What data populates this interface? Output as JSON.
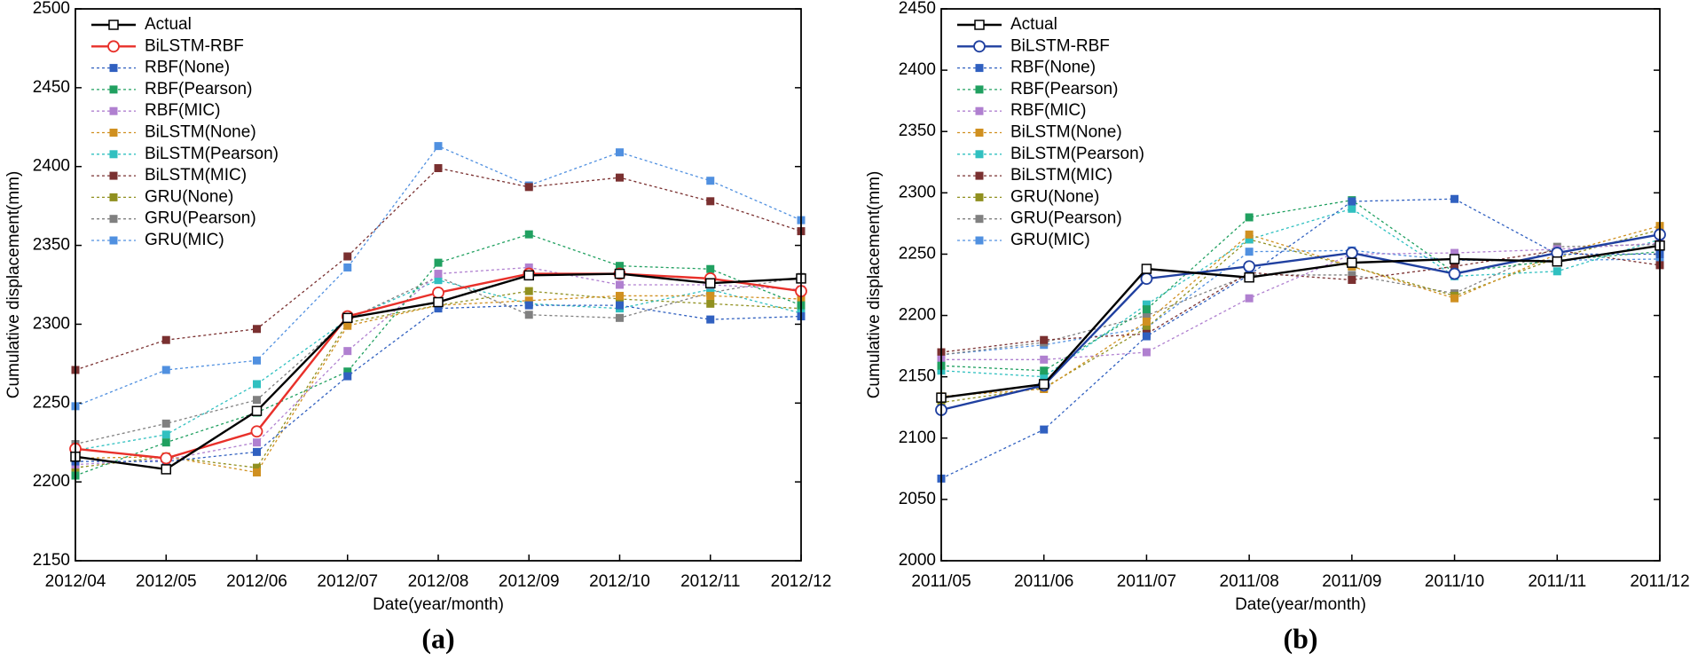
{
  "chart_data": [
    {
      "type": "line",
      "label": "(a)",
      "x_label": "Date(year/month)",
      "y_label": "Cumulative displacement(mm)",
      "categories": [
        "2012/04",
        "2012/05",
        "2012/06",
        "2012/07",
        "2012/08",
        "2012/09",
        "2012/10",
        "2012/11",
        "2012/12"
      ],
      "ylim": [
        2150,
        2500
      ],
      "yticks": [
        2150,
        2200,
        2250,
        2300,
        2350,
        2400,
        2450,
        2500
      ],
      "legend": "upper-left",
      "series": [
        {
          "name": "Actual",
          "color": "#000000",
          "style": "solid",
          "marker": "open-square",
          "values": [
            2216,
            2208,
            2245,
            2304,
            2314,
            2331,
            2332,
            2326,
            2329
          ]
        },
        {
          "name": "BiLSTM-RBF",
          "color": "#e8302a",
          "style": "solid",
          "marker": "open-circle",
          "values": [
            2221,
            2215,
            2232,
            2305,
            2320,
            2332,
            2332,
            2329,
            2321
          ]
        },
        {
          "name": "RBF(None)",
          "color": "#3060c0",
          "style": "dashed",
          "marker": "square",
          "values": [
            2213,
            2213,
            2219,
            2267,
            2310,
            2312,
            2312,
            2303,
            2305
          ]
        },
        {
          "name": "RBF(Pearson)",
          "color": "#20a060",
          "style": "dashed",
          "marker": "square",
          "values": [
            2204,
            2225,
            2244,
            2270,
            2339,
            2357,
            2337,
            2335,
            2312
          ]
        },
        {
          "name": "RBF(MIC)",
          "color": "#b080d0",
          "style": "dashed",
          "marker": "square",
          "values": [
            2211,
            2214,
            2225,
            2283,
            2332,
            2336,
            2325,
            2325,
            2322
          ]
        },
        {
          "name": "BiLSTM(None)",
          "color": "#d09020",
          "style": "dashed",
          "marker": "square",
          "values": [
            2215,
            2216,
            2206,
            2299,
            2312,
            2315,
            2318,
            2318,
            2316
          ]
        },
        {
          "name": "BiLSTM(Pearson)",
          "color": "#30c0c0",
          "style": "dashed",
          "marker": "square",
          "values": [
            2220,
            2230,
            2262,
            2303,
            2328,
            2313,
            2310,
            2322,
            2307
          ]
        },
        {
          "name": "BiLSTM(MIC)",
          "color": "#7a3030",
          "style": "dashed",
          "marker": "square",
          "values": [
            2271,
            2290,
            2297,
            2343,
            2399,
            2387,
            2393,
            2378,
            2359
          ]
        },
        {
          "name": "GRU(None)",
          "color": "#909020",
          "style": "dashed",
          "marker": "square",
          "values": [
            2209,
            2216,
            2209,
            2301,
            2312,
            2321,
            2316,
            2313,
            2310
          ]
        },
        {
          "name": "GRU(Pearson)",
          "color": "#808080",
          "style": "dashed",
          "marker": "square",
          "values": [
            2224,
            2237,
            2252,
            2303,
            2330,
            2306,
            2304,
            2320,
            2330
          ]
        },
        {
          "name": "GRU(MIC)",
          "color": "#5090e0",
          "style": "dashed",
          "marker": "square",
          "values": [
            2248,
            2271,
            2277,
            2336,
            2413,
            2388,
            2409,
            2391,
            2366
          ]
        }
      ]
    },
    {
      "type": "line",
      "label": "(b)",
      "x_label": "Date(year/month)",
      "y_label": "Cumulative displacement(mm)",
      "categories": [
        "2011/05",
        "2011/06",
        "2011/07",
        "2011/08",
        "2011/09",
        "2011/10",
        "2011/11",
        "2011/12"
      ],
      "ylim": [
        2000,
        2450
      ],
      "yticks": [
        2000,
        2050,
        2100,
        2150,
        2200,
        2250,
        2300,
        2350,
        2400,
        2450
      ],
      "legend": "upper-left",
      "series": [
        {
          "name": "Actual",
          "color": "#000000",
          "style": "solid",
          "marker": "open-square",
          "values": [
            2133,
            2144,
            2238,
            2231,
            2243,
            2246,
            2244,
            2257
          ]
        },
        {
          "name": "BiLSTM-RBF",
          "color": "#2040a0",
          "style": "solid",
          "marker": "open-circle",
          "values": [
            2123,
            2143,
            2230,
            2240,
            2251,
            2234,
            2251,
            2266
          ]
        },
        {
          "name": "RBF(None)",
          "color": "#3060c0",
          "style": "dashed",
          "marker": "square",
          "values": [
            2067,
            2107,
            2183,
            2233,
            2293,
            2295,
            2250,
            2250
          ]
        },
        {
          "name": "RBF(Pearson)",
          "color": "#20a060",
          "style": "dashed",
          "marker": "square",
          "values": [
            2159,
            2155,
            2205,
            2280,
            2294,
            2235,
            2245,
            2252
          ]
        },
        {
          "name": "RBF(MIC)",
          "color": "#b080d0",
          "style": "dashed",
          "marker": "square",
          "values": [
            2164,
            2164,
            2170,
            2214,
            2250,
            2251,
            2254,
            2259
          ]
        },
        {
          "name": "BiLSTM(None)",
          "color": "#d09020",
          "style": "dashed",
          "marker": "square",
          "values": [
            2134,
            2140,
            2195,
            2266,
            2240,
            2214,
            2250,
            2273
          ]
        },
        {
          "name": "BiLSTM(Pearson)",
          "color": "#30c0c0",
          "style": "dashed",
          "marker": "square",
          "values": [
            2155,
            2150,
            2209,
            2262,
            2287,
            2232,
            2236,
            2262
          ]
        },
        {
          "name": "BiLSTM(MIC)",
          "color": "#7a3030",
          "style": "dashed",
          "marker": "square",
          "values": [
            2170,
            2180,
            2185,
            2235,
            2229,
            2240,
            2253,
            2241
          ]
        },
        {
          "name": "GRU(None)",
          "color": "#909020",
          "style": "dashed",
          "marker": "square",
          "values": [
            2129,
            2141,
            2190,
            2262,
            2240,
            2216,
            2247,
            2270
          ]
        },
        {
          "name": "GRU(Pearson)",
          "color": "#808080",
          "style": "dashed",
          "marker": "square",
          "values": [
            2168,
            2178,
            2200,
            2233,
            2233,
            2218,
            2256,
            2258
          ]
        },
        {
          "name": "GRU(MIC)",
          "color": "#5090e0",
          "style": "dashed",
          "marker": "square",
          "values": [
            2168,
            2176,
            2190,
            2252,
            2253,
            2245,
            2245,
            2246
          ]
        }
      ]
    }
  ]
}
